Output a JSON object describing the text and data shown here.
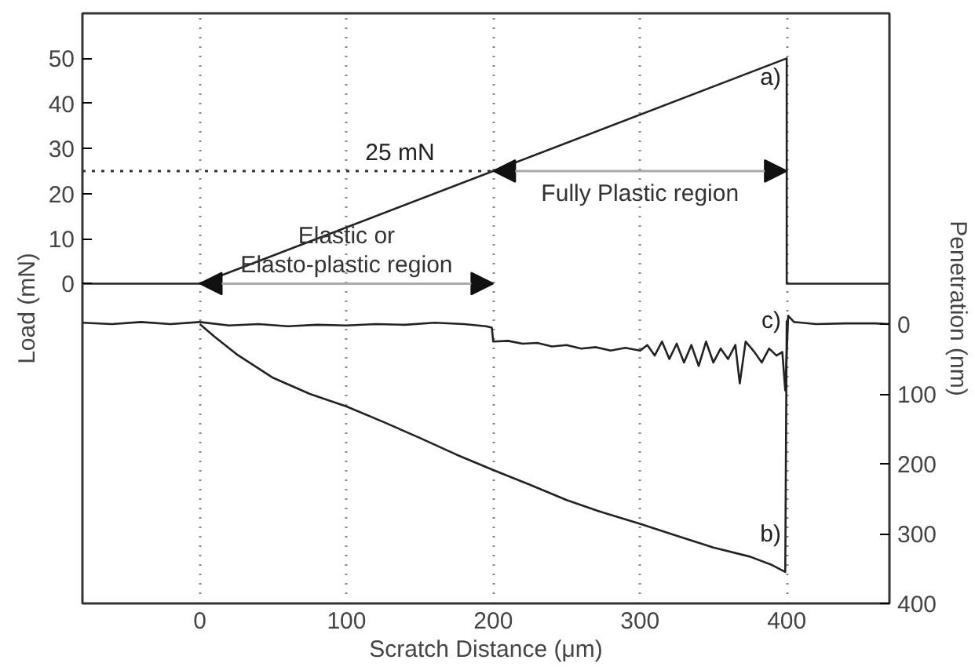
{
  "chart_data": {
    "type": "line",
    "xlabel": "Scratch Distance (μm)",
    "ylabel": "Load (mN)",
    "y2label": "Penetration (nm)",
    "xlim": [
      -80,
      470
    ],
    "xticks": [
      0,
      100,
      200,
      300,
      400
    ],
    "ylim": [
      -71,
      60
    ],
    "yticks": [
      0,
      10,
      20,
      30,
      40,
      50
    ],
    "y2lim": [
      400,
      -445
    ],
    "y2ticks": [
      0,
      100,
      200,
      300,
      400
    ],
    "grid": "x",
    "series": [
      {
        "color": "#222222",
        "x": [
          -80,
          0,
          400,
          400,
          470
        ],
        "values": [
          0,
          0,
          50,
          0,
          0
        ]
      },
      {
        "color": "#222222",
        "axis": "y2",
        "x": [
          0,
          10,
          25,
          50,
          75,
          100,
          125,
          150,
          175,
          200,
          225,
          250,
          275,
          300,
          325,
          350,
          375,
          390,
          399,
          400
        ],
        "values": [
          0,
          18,
          43,
          77,
          100,
          118,
          140,
          163,
          187,
          209,
          230,
          252,
          270,
          286,
          303,
          320,
          333,
          345,
          355,
          -5
        ]
      },
      {
        "color": "#222222",
        "axis": "y2",
        "x": [
          -80,
          -60,
          -40,
          -20,
          0,
          20,
          40,
          60,
          80,
          100,
          120,
          140,
          160,
          180,
          195,
          199,
          200,
          210,
          220,
          230,
          240,
          250,
          260,
          270,
          280,
          290,
          300,
          305,
          310,
          315,
          320,
          325,
          330,
          335,
          340,
          345,
          350,
          355,
          360,
          365,
          368,
          372,
          378,
          383,
          388,
          393,
          397,
          399,
          401,
          405,
          420,
          440,
          460,
          470
        ],
        "values": [
          -2,
          0,
          -3,
          0,
          -3,
          2,
          0,
          3,
          1,
          2,
          0,
          1,
          -2,
          0,
          3,
          5,
          25,
          24,
          28,
          27,
          32,
          30,
          35,
          33,
          38,
          34,
          38,
          30,
          45,
          25,
          50,
          28,
          55,
          30,
          60,
          25,
          55,
          35,
          50,
          30,
          85,
          25,
          40,
          55,
          35,
          45,
          40,
          95,
          -12,
          -3,
          0,
          -1,
          -1,
          0
        ]
      }
    ],
    "ref_lines": [
      {
        "axis": "y",
        "value": 25,
        "label": "25 mN",
        "line_style": "dotted",
        "color": "#333333"
      }
    ],
    "annotations": [
      "Elastic or\nElasto-plastic region",
      "Fully Plastic region",
      "a)",
      "b)",
      "c)"
    ]
  }
}
